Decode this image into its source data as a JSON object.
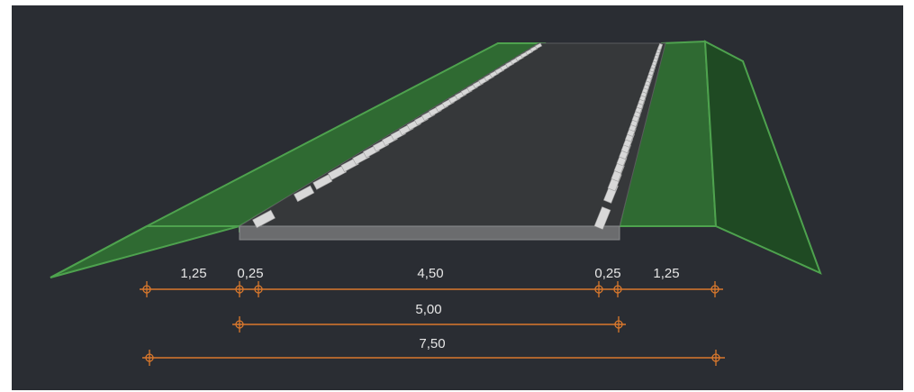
{
  "colors": {
    "background": "#2a2d33",
    "grass": "#2f6a32",
    "grass_dark": "#1f4a23",
    "grass_edge": "#4ea24e",
    "asphalt": "#36383a",
    "curb": "#6b6c6e",
    "marking": "#d8d8d8",
    "dimension": "#d9782d"
  },
  "dimensions": {
    "row1": {
      "left_shoulder": "1,25",
      "left_curb": "0,25",
      "carriageway": "4,50",
      "right_curb": "0,25",
      "right_shoulder": "1,25"
    },
    "row2": {
      "paved_width": "5,00"
    },
    "row3": {
      "total_width": "7,50"
    }
  }
}
